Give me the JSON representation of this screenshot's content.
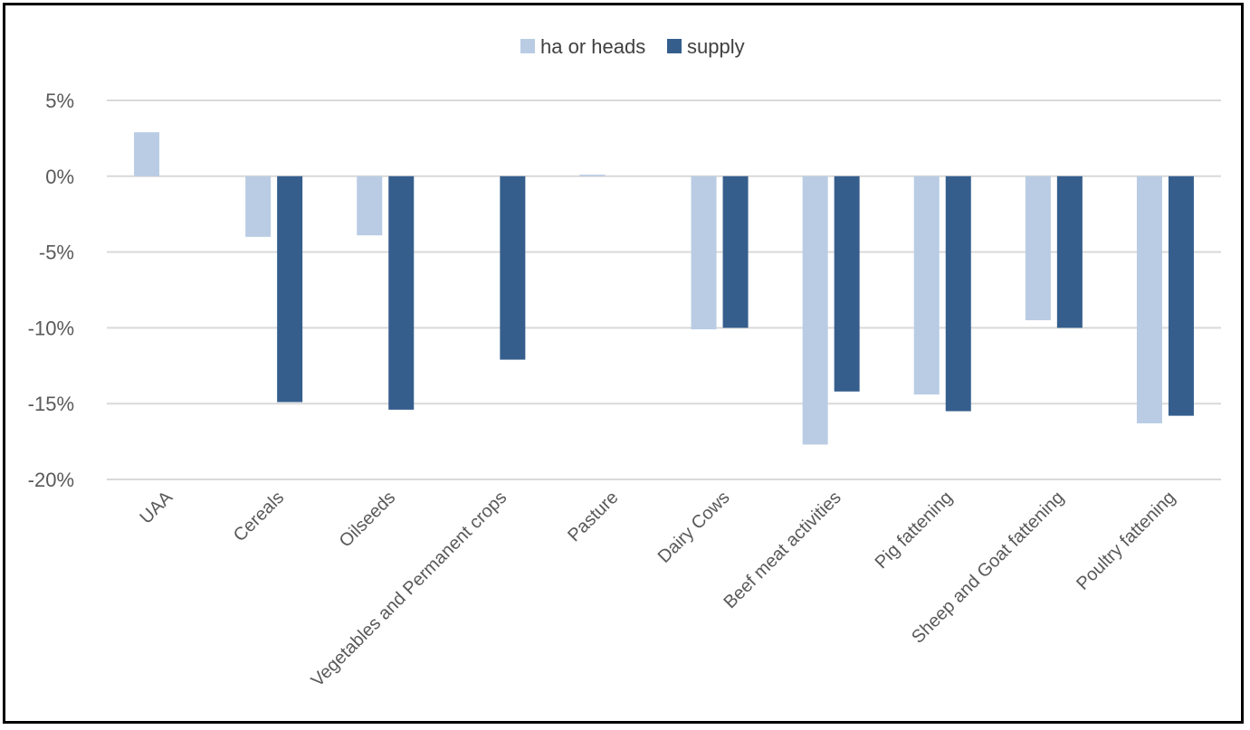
{
  "chart_data": {
    "type": "bar",
    "title": "",
    "xlabel": "",
    "ylabel": "",
    "ylim": [
      -20,
      5
    ],
    "yticks": [
      "5%",
      "0%",
      "-5%",
      "-10%",
      "-15%",
      "-20%"
    ],
    "ytick_values": [
      5,
      0,
      -5,
      -10,
      -15,
      -20
    ],
    "grid": true,
    "legend_position": "top-center",
    "categories": [
      "UAA",
      "Cereals",
      "Oilseeds",
      "Vegetables and Permanent crops",
      "Pasture",
      "Dairy Cows",
      "Beef meat activities",
      "Pig fattening",
      "Sheep and Goat fattening",
      "Poultry fattening"
    ],
    "series": [
      {
        "name": "ha or heads",
        "color": "#b9cce4",
        "values": [
          2.9,
          -4.0,
          -3.9,
          null,
          0.1,
          -10.1,
          -17.7,
          -14.4,
          -9.5,
          -16.3
        ]
      },
      {
        "name": "supply",
        "color": "#355e8d",
        "values": [
          null,
          -14.9,
          -15.4,
          -12.1,
          null,
          -10.0,
          -14.2,
          -15.5,
          -10.0,
          -15.8
        ]
      }
    ]
  }
}
